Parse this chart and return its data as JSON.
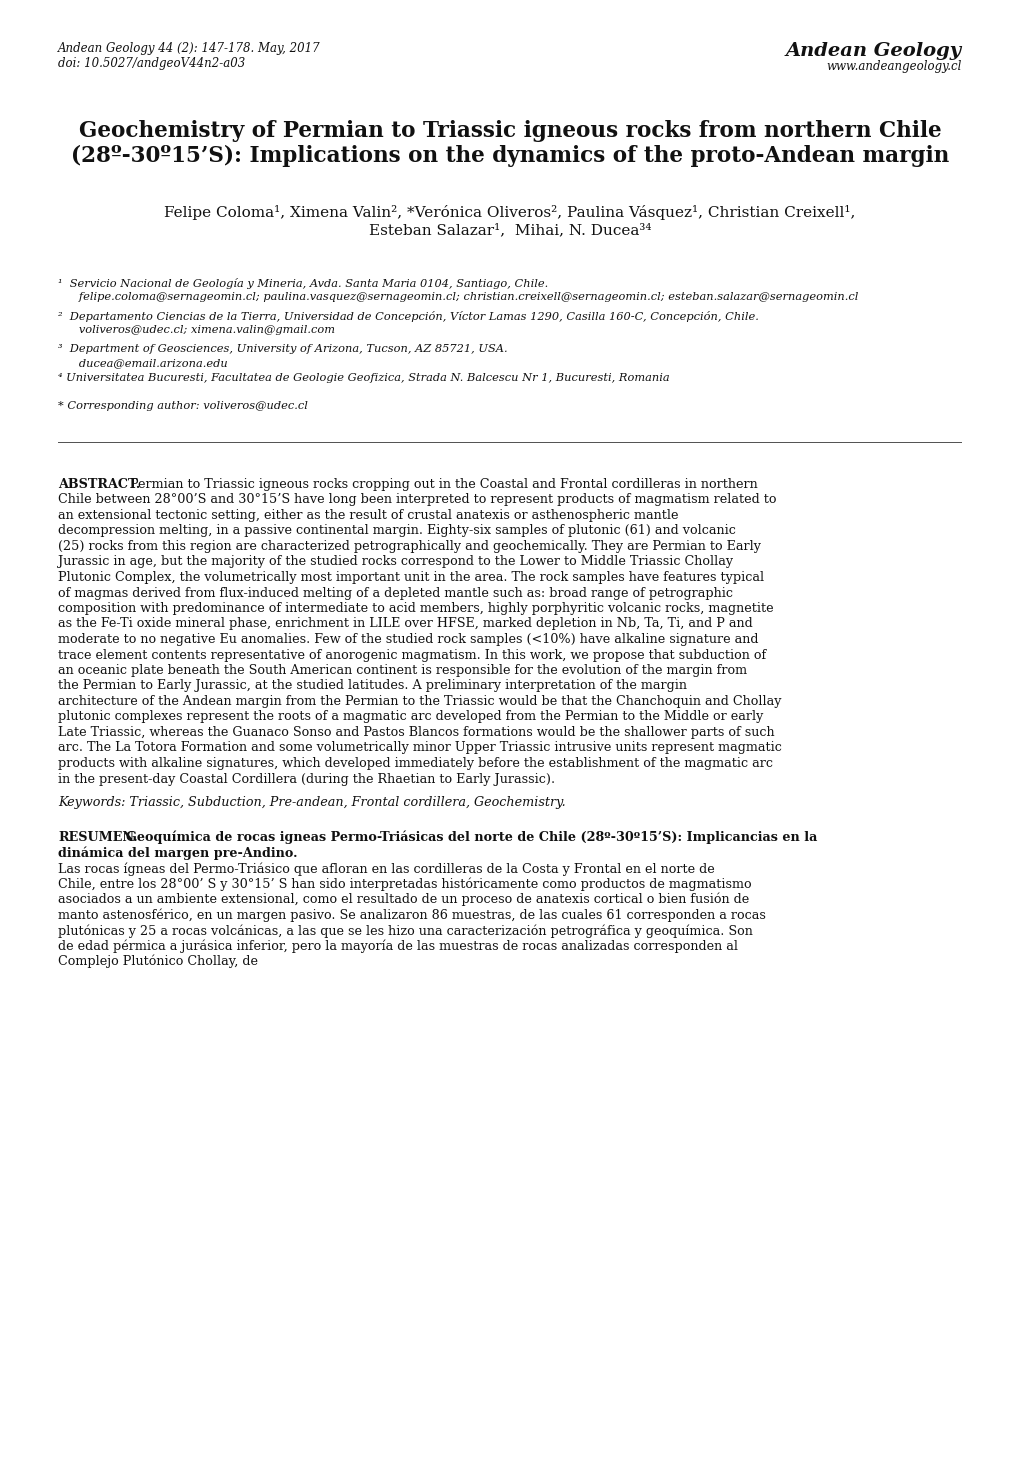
{
  "background_color": "#ffffff",
  "header_left_line1": "Andean Geology 44 (2): 147-178. May, 2017",
  "header_left_line2": "doi: 10.5027/andgeoV44n2-a03",
  "header_right_line1": "Andean Geology",
  "header_right_line2": "www.andeangeology.cl",
  "title_line1": "Geochemistry of Permian to Triassic igneous rocks from northern Chile",
  "title_line2": "(28º-30º15’S): Implications on the dynamics of the proto-Andean margin",
  "authors_line1": "Felipe Coloma¹, Ximena Valin², *Verónica Oliveros², Paulina Vásquez¹, Christian Creixell¹,",
  "authors_line2": "Esteban Salazar¹,  Mihai, N. Ducea³⁴",
  "affil1_line1": "¹  Servicio Nacional de Geología y Mineria, Avda. Santa Maria 0104, Santiago, Chile.",
  "affil1_line2": "   felipe.coloma@sernageomin.cl; paulina.vasquez@sernageomin.cl; christian.creixell@sernageomin.cl; esteban.salazar@sernageomin.cl",
  "affil2_line1": "²  Departamento Ciencias de la Tierra, Universidad de Concepción, Víctor Lamas 1290, Casilla 160-C, Concepción, Chile.",
  "affil2_line2": "   voliveros@udec.cl; ximena.valin@gmail.com",
  "affil3_line1": "³  Department of Geosciences, University of Arizona, Tucson, AZ 85721, USA.",
  "affil3_line2": "   ducea@email.arizona.edu",
  "affil4_line1": "⁴ Universitatea Bucuresti, Facultatea de Geologie Geofizica, Strada N. Balcescu Nr 1, Bucuresti, Romania",
  "corresponding": "* Corresponding author: voliveros@udec.cl",
  "abstract_label": "ABSTRACT.",
  "abstract_text": "Permian to Triassic igneous rocks cropping out in the Coastal and Frontal cordilleras in northern Chile between 28°00’S and 30°15’S have long been interpreted to represent  products of magmatism related to an extensional tectonic setting, either as the result of crustal anatexis or asthenospheric mantle decompression melting, in a passive continental margin. Eighty-six samples of plutonic (61) and volcanic (25) rocks from this region are characterized petrographically and geochemically. They are Permian to Early Jurassic in age, but the majority of the studied rocks correspond to the Lower to Middle Triassic Chollay Plutonic Complex, the volumetrically most important unit in the area. The rock samples have features typical of magmas derived from flux-induced melting of a depleted mantle such as: broad range of petrographic composition with predominance of intermediate to acid members, highly porphyritic volcanic rocks, magnetite as the Fe-Ti oxide mineral phase, enrichment in LILE over HFSE, marked depletion in Nb, Ta, Ti, and P and moderate to no negative Eu anomalies. Few of the studied rock samples (<10%) have alkaline signature and trace element contents representative of anorogenic magmatism. In this work, we propose that subduction of an oceanic plate beneath the South American continent is responsible for the evolution of the margin from the Permian to Early Jurassic, at the studied latitudes. A preliminary interpretation of the margin architecture of the Andean margin from the Permian to the Triassic would be that the Chanchoquin and Chollay plutonic complexes represent the roots of a magmatic arc developed from the Permian to the Middle or early Late Triassic, whereas the Guanaco Sonso and Pastos Blancos formations would be the shallower parts of such arc. The La Totora Formation and some volumetrically minor Upper Triassic intrusive units represent magmatic products with alkaline signatures, which developed immediately before the establishment of the magmatic arc in the present-day Coastal Cordillera (during the Rhaetian to Early Jurassic).",
  "keywords": "Keywords: Triassic, Subduction, Pre-andean, Frontal cordillera, Geochemistry.",
  "resumen_label": "RESUMEN.",
  "resumen_bold": "Geoquímica de rocas igneas Permo-Triásicas del norte de Chile (28º-30º15’S): Implicancias en la dinámica del margen pre-Andino.",
  "resumen_text": "Las rocas ígneas del Permo-Triásico que afloran en las cordilleras de la Costa y Frontal en el norte de Chile, entre los 28°00’ S y 30°15’ S han sido interpretadas históricamente como productos de magmatismo asociados a un ambiente extensional, como el resultado de un proceso de anatexis cortical o bien fusión de manto astenosférico, en un margen pasivo. Se analizaron 86 muestras, de las cuales 61 corresponden a rocas plutónicas y 25 a rocas volcánicas, a las que se les hizo una caracterización petrográfica y geoquímica. Son de edad pérmica a jurásica inferior, pero la mayoría de las muestras de rocas analizadas corresponden al Complejo Plutónico Chollay, de"
}
